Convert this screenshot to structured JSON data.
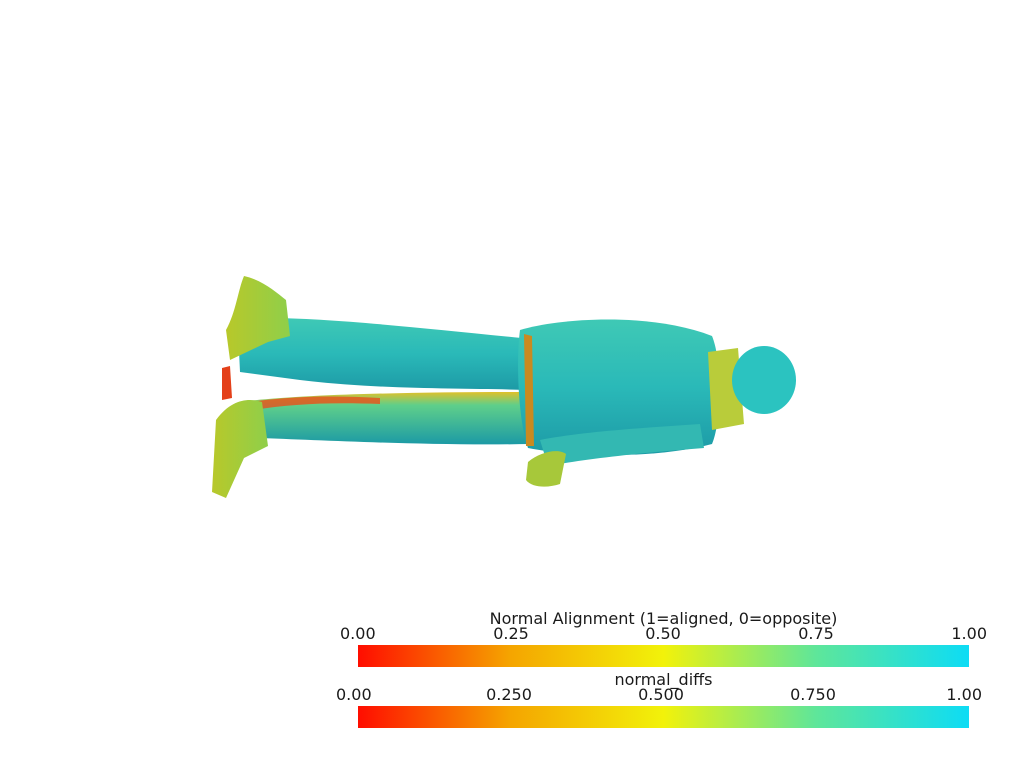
{
  "colorbars": [
    {
      "title": "Normal Alignment (1=aligned, 0=opposite)",
      "ticks": [
        "0.00",
        "0.25",
        "0.50",
        "0.75",
        "1.00"
      ],
      "colors": [
        "#ff0d00",
        "#f5a500",
        "#f2f20a",
        "#5ee69a",
        "#0ddcf5"
      ]
    },
    {
      "title": "normal_diffs",
      "ticks": [
        "0.00",
        "0.250",
        "0.500",
        "0.750",
        "1.00"
      ],
      "colors": [
        "#ff0d00",
        "#f5a500",
        "#f2f20a",
        "#5ee69a",
        "#0ddcf5"
      ]
    }
  ]
}
